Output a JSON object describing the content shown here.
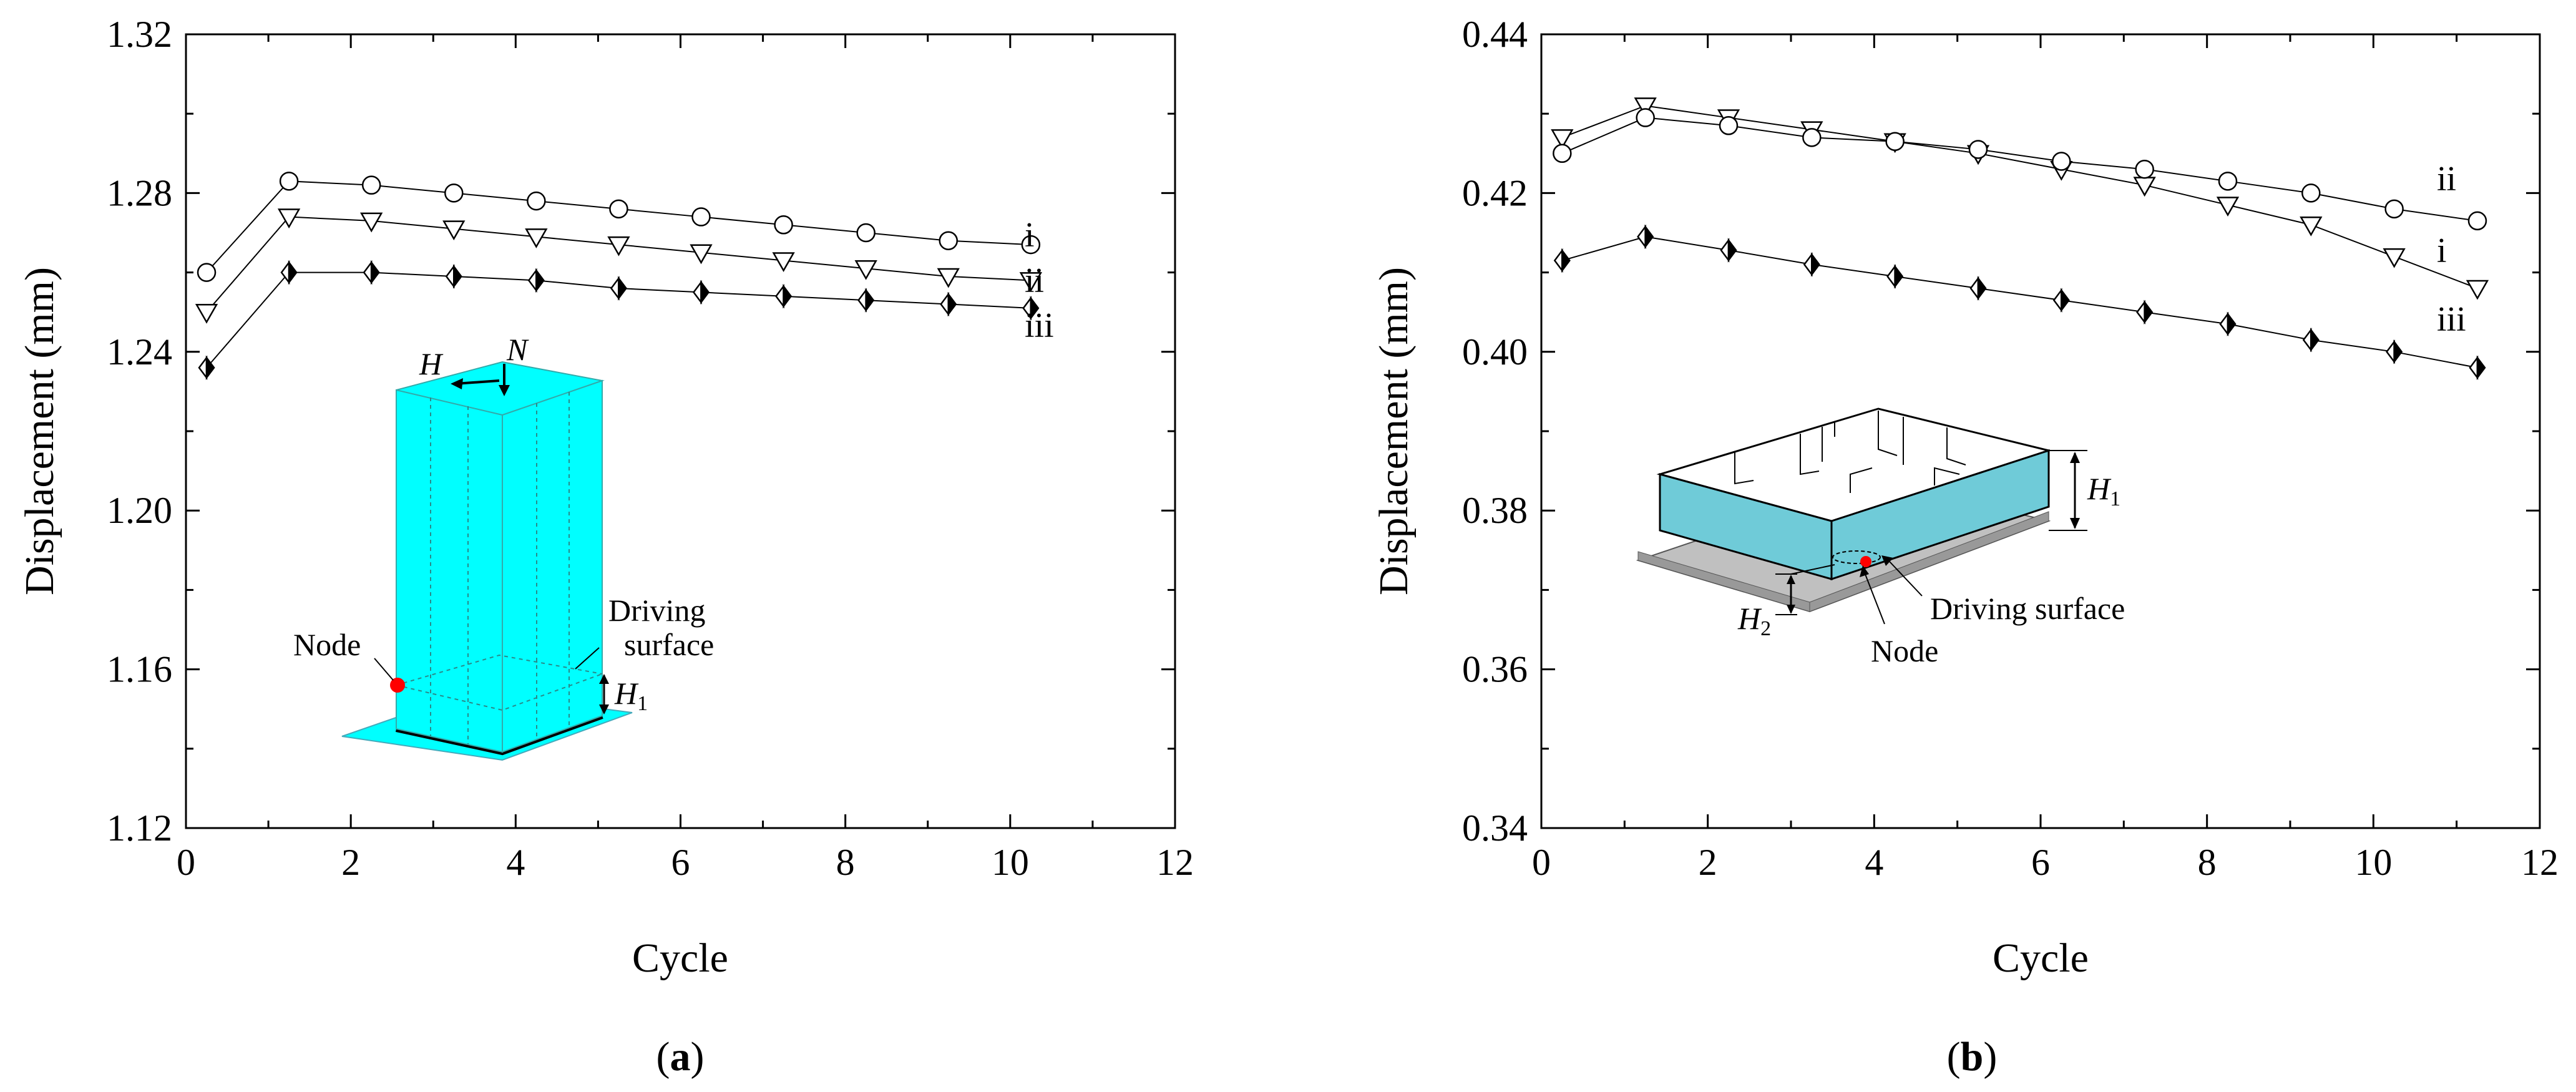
{
  "chart_data": [
    {
      "type": "line",
      "panel_label": "(a)",
      "xlabel": "Cycle",
      "ylabel": "Displacement (mm)",
      "xlim": [
        0,
        12
      ],
      "ylim": [
        1.12,
        1.32
      ],
      "xticks": [
        "0",
        "2",
        "4",
        "6",
        "8",
        "10",
        "12"
      ],
      "yticks": [
        "1.12",
        "1.16",
        "1.20",
        "1.24",
        "1.28",
        "1.32"
      ],
      "grid": false,
      "x": [
        0.25,
        1.25,
        2.25,
        3.25,
        4.25,
        5.25,
        6.25,
        7.25,
        8.25,
        9.25,
        10.25
      ],
      "series": [
        {
          "name": "i",
          "marker": "circle",
          "values": [
            1.26,
            1.283,
            1.282,
            1.28,
            1.278,
            1.276,
            1.274,
            1.272,
            1.27,
            1.268,
            1.267
          ]
        },
        {
          "name": "ii",
          "marker": "triangle-down",
          "values": [
            1.25,
            1.274,
            1.273,
            1.271,
            1.269,
            1.267,
            1.265,
            1.263,
            1.261,
            1.259,
            1.258
          ]
        },
        {
          "name": "iii",
          "marker": "half-diamond",
          "values": [
            1.236,
            1.26,
            1.26,
            1.259,
            1.258,
            1.256,
            1.255,
            1.254,
            1.253,
            1.252,
            1.251
          ]
        }
      ],
      "inset": {
        "labels": {
          "h": "H",
          "n": "N",
          "node": "Node",
          "driving1": "Driving",
          "driving2": "surface",
          "h1": "H",
          "h1_sub": "1"
        },
        "colors": {
          "block": "#00ffff",
          "node": "#ff0000"
        }
      }
    },
    {
      "type": "line",
      "panel_label": "(b)",
      "xlabel": "Cycle",
      "ylabel": "Displacement (mm)",
      "xlim": [
        0,
        12
      ],
      "ylim": [
        0.34,
        0.44
      ],
      "xticks": [
        "0",
        "2",
        "4",
        "6",
        "8",
        "10",
        "12"
      ],
      "yticks": [
        "0.34",
        "0.36",
        "0.38",
        "0.40",
        "0.42",
        "0.44"
      ],
      "grid": false,
      "x": [
        0.25,
        1.25,
        2.25,
        3.25,
        4.25,
        5.25,
        6.25,
        7.25,
        8.25,
        9.25,
        10.25,
        11.25
      ],
      "series": [
        {
          "name": "i",
          "marker": "triangle-down",
          "values": [
            0.427,
            0.431,
            0.4295,
            0.428,
            0.4265,
            0.425,
            0.423,
            0.421,
            0.4185,
            0.416,
            0.412,
            0.408
          ]
        },
        {
          "name": "ii",
          "marker": "circle",
          "values": [
            0.425,
            0.4295,
            0.4285,
            0.427,
            0.4265,
            0.4255,
            0.424,
            0.423,
            0.4215,
            0.42,
            0.418,
            0.4165
          ]
        },
        {
          "name": "iii",
          "marker": "half-diamond",
          "values": [
            0.4115,
            0.4145,
            0.4128,
            0.411,
            0.4095,
            0.408,
            0.4065,
            0.405,
            0.4035,
            0.4015,
            0.4,
            0.398
          ]
        }
      ],
      "inset": {
        "labels": {
          "h1": "H",
          "h1_sub": "1",
          "h2": "H",
          "h2_sub": "2",
          "driving": "Driving surface",
          "node": "Node"
        },
        "colors": {
          "wall": "#6fcbd8",
          "base": "#c0c0c0",
          "node": "#ff0000"
        }
      }
    }
  ]
}
